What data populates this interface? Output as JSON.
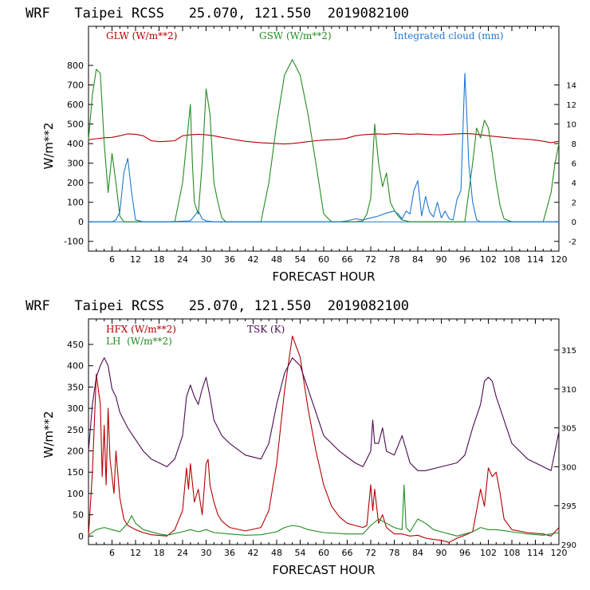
{
  "chart_data": [
    {
      "type": "line",
      "title": "WRF   Taipei RCSS   25.070, 121.550  2019082100",
      "xlabel": "FORECAST HOUR",
      "ylabel": "W/m**2",
      "xlim": [
        0,
        120
      ],
      "ylim": [
        -150,
        1000
      ],
      "y2lim": [
        -3,
        20
      ],
      "x_ticks": [
        6,
        12,
        18,
        24,
        30,
        36,
        42,
        48,
        54,
        60,
        66,
        72,
        78,
        84,
        90,
        96,
        102,
        108,
        114,
        120
      ],
      "y_ticks": [
        -100,
        0,
        100,
        200,
        300,
        400,
        500,
        600,
        700,
        800
      ],
      "y2_ticks": [
        -2,
        0,
        2,
        4,
        6,
        8,
        10,
        12,
        14
      ],
      "zero_line": 0,
      "series": [
        {
          "name": "GLW (W/m**2)",
          "color": "#b40000",
          "axis": "left",
          "x": [
            0,
            2,
            4,
            6,
            8,
            10,
            12,
            14,
            16,
            18,
            20,
            22,
            24,
            26,
            28,
            30,
            32,
            34,
            36,
            38,
            40,
            42,
            44,
            46,
            48,
            50,
            52,
            54,
            56,
            58,
            60,
            62,
            64,
            66,
            68,
            70,
            72,
            74,
            76,
            78,
            80,
            82,
            84,
            86,
            88,
            90,
            92,
            94,
            96,
            98,
            100,
            102,
            104,
            106,
            108,
            110,
            112,
            114,
            116,
            118,
            120
          ],
          "values": [
            420,
            425,
            430,
            432,
            440,
            450,
            448,
            440,
            415,
            410,
            412,
            415,
            440,
            445,
            448,
            445,
            440,
            432,
            425,
            418,
            412,
            408,
            404,
            402,
            400,
            398,
            401,
            405,
            410,
            415,
            418,
            420,
            422,
            428,
            440,
            445,
            448,
            450,
            448,
            452,
            450,
            448,
            450,
            448,
            446,
            445,
            448,
            450,
            452,
            450,
            445,
            440,
            436,
            432,
            428,
            425,
            422,
            418,
            412,
            405,
            412
          ]
        },
        {
          "name": "GSW (W/m**2)",
          "color": "#228b22",
          "axis": "left",
          "x": [
            0,
            1,
            2,
            3,
            4,
            5,
            6,
            7,
            8,
            9,
            10,
            12,
            14,
            16,
            18,
            20,
            22,
            24,
            25,
            26,
            26.5,
            27,
            28,
            29,
            30,
            31,
            32,
            33,
            34,
            35,
            36,
            40,
            44,
            46,
            48,
            50,
            52,
            54,
            56,
            58,
            60,
            62,
            64,
            66,
            68,
            70,
            71,
            72,
            73,
            74,
            75,
            76,
            77,
            78,
            79,
            80,
            82,
            84,
            86,
            88,
            90,
            92,
            94,
            96,
            97,
            98,
            99,
            100,
            101,
            102,
            103,
            104,
            105,
            106,
            108,
            112,
            116,
            118,
            119,
            120
          ],
          "values": [
            420,
            650,
            780,
            760,
            400,
            150,
            350,
            200,
            30,
            0,
            0,
            0,
            0,
            0,
            0,
            0,
            0,
            200,
            400,
            600,
            300,
            100,
            40,
            300,
            680,
            550,
            200,
            100,
            20,
            0,
            0,
            0,
            0,
            200,
            500,
            750,
            830,
            750,
            550,
            300,
            40,
            0,
            0,
            0,
            0,
            5,
            40,
            120,
            500,
            300,
            180,
            250,
            100,
            60,
            30,
            10,
            0,
            0,
            0,
            0,
            0,
            0,
            0,
            0,
            150,
            300,
            480,
            430,
            520,
            480,
            350,
            200,
            80,
            15,
            0,
            0,
            0,
            150,
            300,
            400
          ]
        },
        {
          "name": "Integrated cloud (mm)",
          "color": "#1e78d2",
          "axis": "right",
          "x": [
            0,
            6,
            7,
            8,
            9,
            10,
            11,
            12,
            14,
            20,
            26,
            27,
            28,
            29,
            30,
            32,
            36,
            40,
            48,
            56,
            64,
            66,
            68,
            70,
            72,
            74,
            76,
            78,
            79,
            80,
            81,
            82,
            83,
            84,
            85,
            86,
            87,
            88,
            89,
            90,
            91,
            92,
            93,
            94,
            95,
            96,
            96.5,
            97,
            98,
            99,
            100,
            102,
            110,
            120
          ],
          "values": [
            0,
            0,
            0.2,
            1.0,
            5.0,
            6.5,
            3.0,
            0.2,
            0,
            0,
            0.1,
            0.6,
            1.1,
            0.3,
            0.1,
            0,
            0,
            0,
            0,
            0,
            0,
            0.1,
            0.3,
            0.2,
            0.4,
            0.6,
            0.9,
            1.1,
            0.8,
            0.3,
            1.1,
            0.8,
            3.2,
            4.2,
            0.6,
            2.6,
            1.0,
            0.5,
            2.0,
            0.4,
            1.1,
            0.3,
            0.2,
            2.3,
            3.2,
            15.2,
            11.0,
            6.0,
            2.0,
            0.2,
            0,
            0,
            0,
            0
          ]
        }
      ]
    },
    {
      "type": "line",
      "title": "WRF   Taipei RCSS   25.070, 121.550  2019082100",
      "xlabel": "FORECAST HOUR",
      "ylabel": "W/m**2",
      "xlim": [
        0,
        120
      ],
      "ylim": [
        -20,
        510
      ],
      "y2lim": [
        290,
        319
      ],
      "x_ticks": [
        6,
        12,
        18,
        24,
        30,
        36,
        42,
        48,
        54,
        60,
        66,
        72,
        78,
        84,
        90,
        96,
        102,
        108,
        114,
        120
      ],
      "y_ticks": [
        0,
        50,
        100,
        150,
        200,
        250,
        300,
        350,
        400,
        450
      ],
      "y2_ticks": [
        290,
        295,
        300,
        305,
        310,
        315
      ],
      "series": [
        {
          "name": "HFX (W/m**2)",
          "color": "#b40000",
          "axis": "left",
          "x": [
            0,
            1,
            2,
            3,
            3.5,
            4,
            4.5,
            5,
            5.5,
            6,
            6.5,
            7,
            8,
            9,
            10,
            12,
            14,
            16,
            20,
            22,
            24,
            25,
            25.5,
            26,
            27,
            28,
            29,
            30,
            30.5,
            31,
            32,
            33,
            34,
            36,
            40,
            44,
            46,
            48,
            50,
            52,
            54,
            56,
            58,
            60,
            62,
            64,
            66,
            68,
            70,
            71,
            72,
            72.5,
            73,
            74,
            75,
            76,
            78,
            80,
            82,
            84,
            86,
            88,
            90,
            92,
            94,
            96,
            98,
            100,
            101,
            102,
            103,
            104,
            105,
            106,
            108,
            112,
            116,
            118,
            120
          ],
          "values": [
            0,
            150,
            380,
            310,
            140,
            260,
            120,
            300,
            180,
            140,
            100,
            200,
            90,
            40,
            25,
            15,
            8,
            3,
            0,
            15,
            60,
            160,
            110,
            170,
            80,
            110,
            50,
            170,
            180,
            120,
            80,
            50,
            35,
            20,
            12,
            20,
            60,
            170,
            340,
            470,
            420,
            300,
            200,
            120,
            70,
            45,
            30,
            25,
            20,
            25,
            120,
            60,
            110,
            30,
            50,
            20,
            5,
            5,
            0,
            2,
            -5,
            -8,
            -10,
            -15,
            -5,
            2,
            10,
            110,
            70,
            160,
            140,
            150,
            100,
            40,
            15,
            8,
            5,
            0,
            20
          ]
        },
        {
          "name": "LH  (W/m**2)",
          "color": "#228b22",
          "axis": "left",
          "x": [
            0,
            2,
            4,
            6,
            8,
            10,
            11,
            12,
            14,
            18,
            20,
            24,
            26,
            28,
            30,
            32,
            36,
            40,
            44,
            48,
            50,
            52,
            54,
            56,
            60,
            66,
            70,
            72,
            74,
            76,
            78,
            80,
            80.5,
            81,
            82,
            84,
            86,
            88,
            90,
            92,
            94,
            96,
            98,
            100,
            102,
            104,
            108,
            112,
            116,
            118,
            120
          ],
          "values": [
            2,
            15,
            20,
            15,
            10,
            30,
            48,
            30,
            15,
            5,
            2,
            10,
            15,
            10,
            15,
            8,
            5,
            2,
            3,
            10,
            20,
            25,
            22,
            15,
            8,
            5,
            5,
            25,
            40,
            30,
            20,
            15,
            120,
            20,
            10,
            40,
            30,
            15,
            10,
            5,
            0,
            5,
            10,
            20,
            15,
            15,
            10,
            5,
            2,
            5,
            8
          ]
        },
        {
          "name": "TSK (K)",
          "color": "#4b0a50",
          "axis": "right",
          "x": [
            0,
            1,
            2,
            3,
            4,
            5,
            6,
            7,
            8,
            10,
            12,
            14,
            16,
            18,
            20,
            22,
            24,
            25,
            26,
            27,
            28,
            29,
            30,
            31,
            32,
            34,
            36,
            40,
            44,
            46,
            48,
            50,
            52,
            54,
            56,
            58,
            60,
            64,
            68,
            70,
            72,
            72.5,
            73,
            74,
            75,
            76,
            78,
            80,
            82,
            84,
            86,
            90,
            94,
            96,
            98,
            100,
            101,
            102,
            103,
            104,
            106,
            108,
            112,
            116,
            118,
            120
          ],
          "values": [
            302,
            308,
            311.5,
            313,
            314,
            313,
            310,
            309,
            307,
            305,
            303.5,
            302,
            301,
            300.5,
            300,
            301,
            304,
            309,
            310.5,
            309,
            308,
            310,
            311.5,
            309,
            306,
            304,
            303,
            301.5,
            301,
            303,
            308,
            312,
            314,
            313,
            310,
            307,
            304,
            302,
            300.5,
            300,
            302,
            306,
            303,
            303,
            305,
            302,
            301.5,
            304,
            300.5,
            299.5,
            299.5,
            300,
            300.5,
            301.5,
            305,
            308,
            311,
            311.5,
            311,
            309,
            306,
            303,
            301,
            300,
            299.5,
            304.5
          ]
        }
      ]
    }
  ]
}
